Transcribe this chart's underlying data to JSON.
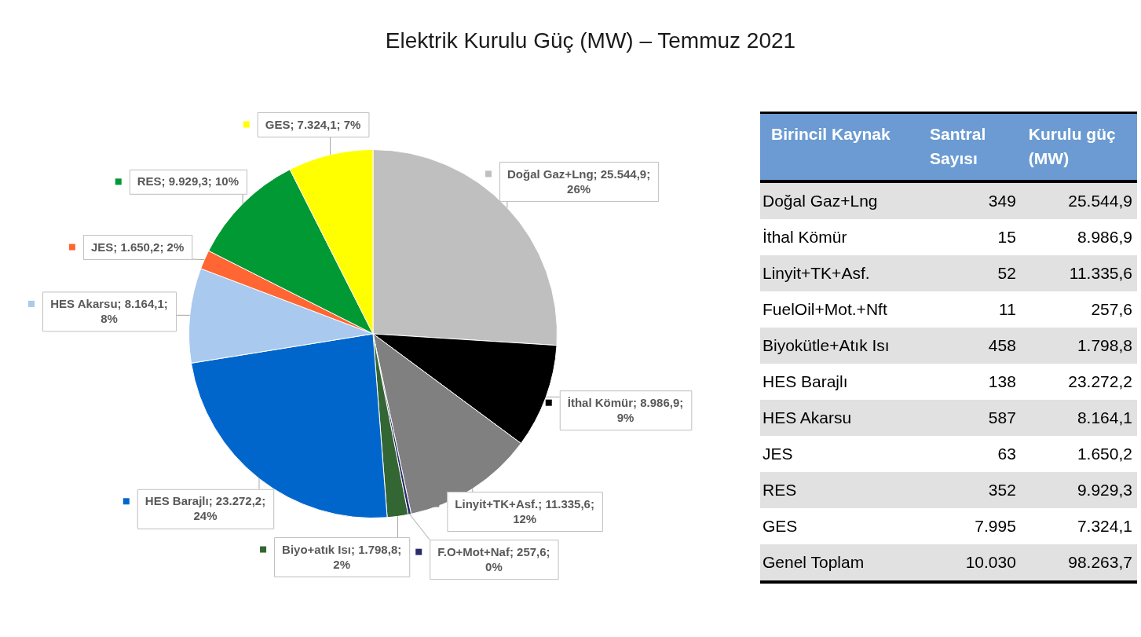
{
  "chart_data": [
    {
      "type": "pie",
      "title": "Elektrik Kurulu Güç (MW) – Temmuz 2021",
      "legend": "left",
      "categories": [
        "Doğal Gaz+Lng",
        "İthal Kömür",
        "Linyit+TK+Asf.",
        "F.O+Mot+Naf",
        "Biyo+atık Isı",
        "HES Barajlı",
        "HES Akarsu",
        "JES",
        "RES",
        "GES"
      ],
      "values": [
        25544.9,
        8986.9,
        11335.6,
        257.6,
        1798.8,
        23272.2,
        8164.1,
        1650.2,
        9929.3,
        7324.1
      ],
      "colors": [
        "#bfbfbf",
        "#000000",
        "#808080",
        "#2b2b6b",
        "#336633",
        "#0066cc",
        "#a9c9ee",
        "#ff6633",
        "#009933",
        "#ffff00"
      ],
      "value_labels": [
        "25.544,9; 26%",
        "8.986,9; 9%",
        "11.335,6; 12%",
        "257,6; 0%",
        "1.798,8; 2%",
        "23.272,2; 24%",
        "8.164,1; 8%",
        "1.650,2; 2%",
        "9.929,3; 10%",
        "7.324,1; 7%"
      ]
    },
    {
      "type": "other",
      "xlabel": "Birincil Kaynak",
      "categories": [
        "Doğal Gaz+Lng",
        "İthal Kömür",
        "Linyit+TK+Asf.",
        "FuelOil+Mot.+Nft",
        "Biyokütle+Atık Isı",
        "HES Barajlı",
        "HES Akarsu",
        "JES",
        "RES",
        "GES",
        "Genel Toplam"
      ],
      "series": [
        {
          "name": "Santral Sayısı",
          "values": [
            349,
            15,
            52,
            11,
            458,
            138,
            587,
            63,
            352,
            7995,
            10030
          ],
          "value_labels": [
            "349",
            "15",
            "52",
            "11",
            "458",
            "138",
            "587",
            "63",
            "352",
            "7.995",
            "10.030"
          ]
        },
        {
          "name": "Kurulu güç (MW)",
          "values": [
            25544.9,
            8986.9,
            11335.6,
            257.6,
            1798.8,
            23272.2,
            8164.1,
            1650.2,
            9929.3,
            7324.1,
            98263.7
          ],
          "value_labels": [
            "25.544,9",
            "8.986,9",
            "11.335,6",
            "257,6",
            "1.798,8",
            "23.272,2",
            "8.164,1",
            "1.650,2",
            "9.929,3",
            "7.324,1",
            "98.263,7"
          ]
        }
      ]
    }
  ]
}
